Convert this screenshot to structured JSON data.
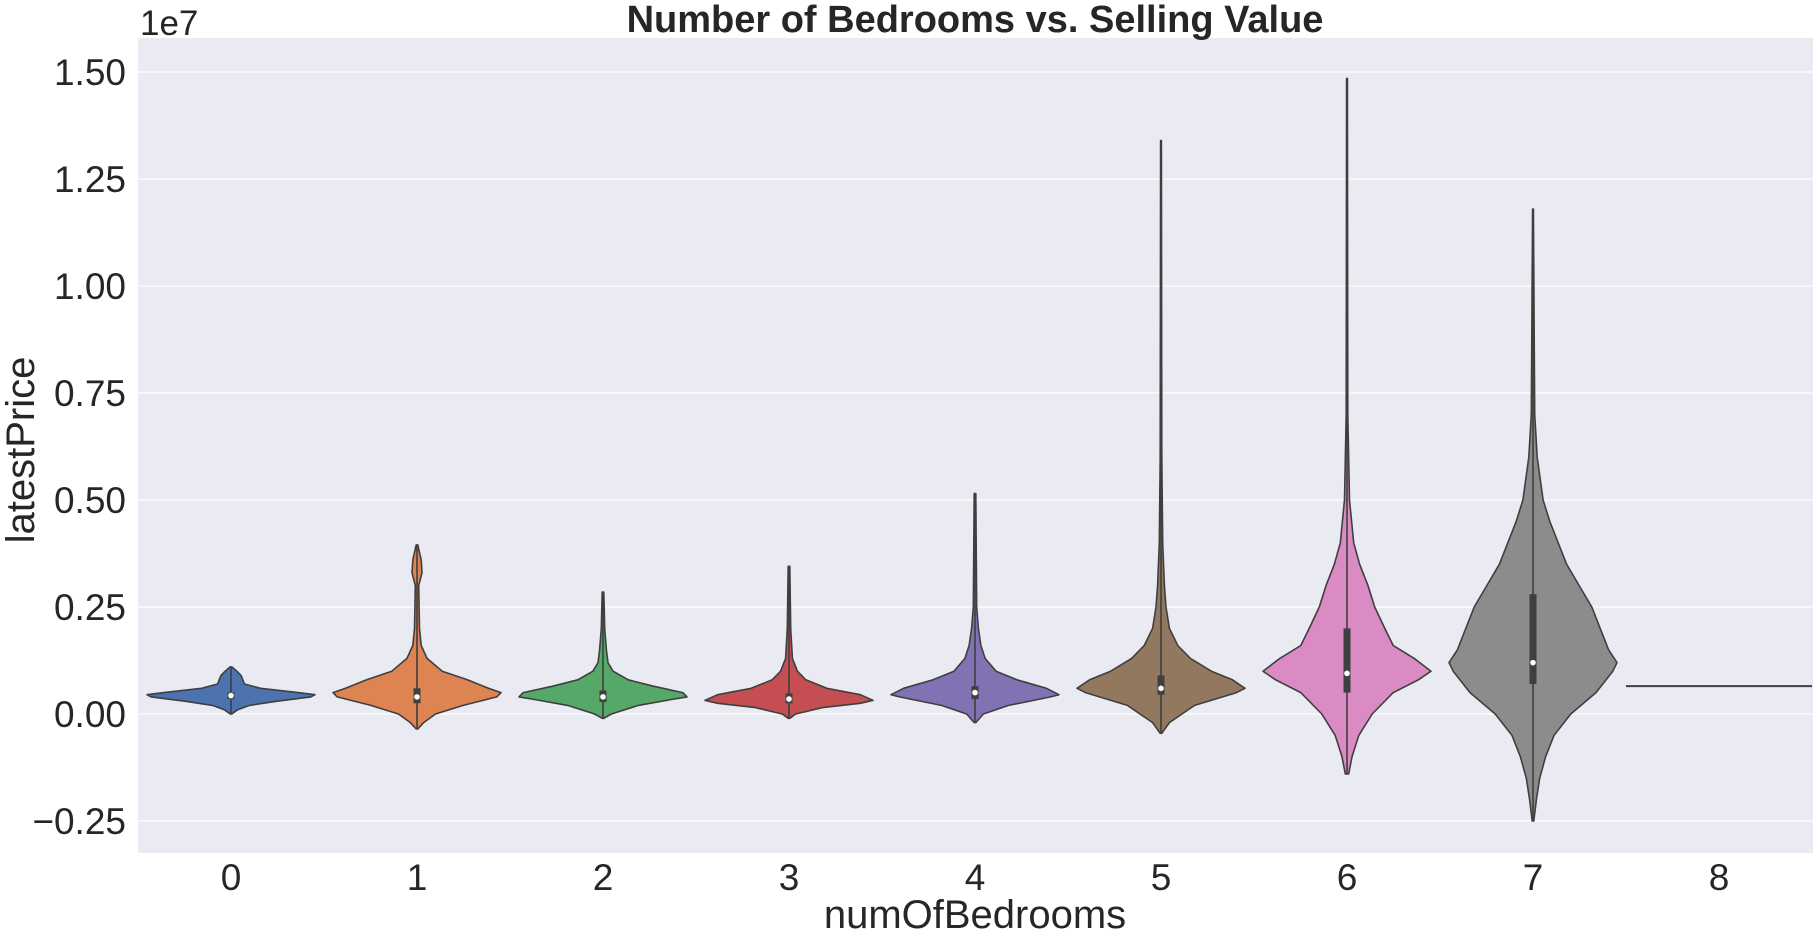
{
  "chart_data": {
    "type": "violin",
    "title": "Number of Bedrooms vs. Selling Value",
    "xlabel": "numOfBedrooms",
    "ylabel": "latestPrice",
    "y_offset_label": "1e7",
    "y_scale_factor": 10000000,
    "ylim": [
      -0.35,
      1.57
    ],
    "y_ticks": [
      -0.25,
      0.0,
      0.25,
      0.5,
      0.75,
      1.0,
      1.25,
      1.5
    ],
    "y_tick_labels": [
      "−0.25",
      "0.00",
      "0.25",
      "0.50",
      "0.75",
      "1.00",
      "1.25",
      "1.50"
    ],
    "categories": [
      "0",
      "1",
      "2",
      "3",
      "4",
      "5",
      "6",
      "7",
      "8"
    ],
    "grid": true,
    "background": "#eaeaf2",
    "colors": [
      "#4c72b0",
      "#dd8452",
      "#55a868",
      "#c44e52",
      "#8172b3",
      "#937860",
      "#da8bc3",
      "#8c8c8c",
      "#ccb974"
    ],
    "violins": [
      {
        "category": "0",
        "min": 0.0,
        "max": 0.11,
        "q1": 0.035,
        "median": 0.043,
        "q3": 0.05,
        "profile": [
          [
            0.0,
            0.01
          ],
          [
            0.01,
            0.08
          ],
          [
            0.02,
            0.22
          ],
          [
            0.03,
            0.55
          ],
          [
            0.04,
            0.95
          ],
          [
            0.045,
            1.0
          ],
          [
            0.05,
            0.8
          ],
          [
            0.06,
            0.35
          ],
          [
            0.07,
            0.16
          ],
          [
            0.08,
            0.14
          ],
          [
            0.09,
            0.12
          ],
          [
            0.1,
            0.07
          ],
          [
            0.11,
            0.01
          ]
        ]
      },
      {
        "category": "1",
        "min": -0.035,
        "max": 0.395,
        "q1": 0.025,
        "median": 0.04,
        "q3": 0.06,
        "profile": [
          [
            -0.035,
            0.01
          ],
          [
            -0.02,
            0.08
          ],
          [
            0.0,
            0.22
          ],
          [
            0.02,
            0.55
          ],
          [
            0.04,
            0.95
          ],
          [
            0.05,
            1.0
          ],
          [
            0.06,
            0.85
          ],
          [
            0.08,
            0.6
          ],
          [
            0.1,
            0.3
          ],
          [
            0.13,
            0.12
          ],
          [
            0.16,
            0.05
          ],
          [
            0.2,
            0.03
          ],
          [
            0.3,
            0.02
          ],
          [
            0.33,
            0.06
          ],
          [
            0.36,
            0.05
          ],
          [
            0.395,
            0.01
          ]
        ]
      },
      {
        "category": "2",
        "min": -0.01,
        "max": 0.285,
        "q1": 0.028,
        "median": 0.04,
        "q3": 0.055,
        "profile": [
          [
            -0.01,
            0.01
          ],
          [
            0.0,
            0.1
          ],
          [
            0.02,
            0.42
          ],
          [
            0.035,
            0.85
          ],
          [
            0.04,
            1.0
          ],
          [
            0.05,
            0.95
          ],
          [
            0.065,
            0.6
          ],
          [
            0.08,
            0.3
          ],
          [
            0.1,
            0.12
          ],
          [
            0.12,
            0.06
          ],
          [
            0.15,
            0.04
          ],
          [
            0.2,
            0.02
          ],
          [
            0.285,
            0.01
          ]
        ]
      },
      {
        "category": "3",
        "min": -0.01,
        "max": 0.345,
        "q1": 0.025,
        "median": 0.035,
        "q3": 0.048,
        "profile": [
          [
            -0.01,
            0.01
          ],
          [
            0.0,
            0.08
          ],
          [
            0.015,
            0.4
          ],
          [
            0.025,
            0.85
          ],
          [
            0.032,
            1.0
          ],
          [
            0.045,
            0.85
          ],
          [
            0.06,
            0.45
          ],
          [
            0.08,
            0.2
          ],
          [
            0.1,
            0.1
          ],
          [
            0.13,
            0.04
          ],
          [
            0.2,
            0.02
          ],
          [
            0.345,
            0.01
          ]
        ]
      },
      {
        "category": "4",
        "min": -0.02,
        "max": 0.515,
        "q1": 0.035,
        "median": 0.05,
        "q3": 0.065,
        "profile": [
          [
            -0.02,
            0.01
          ],
          [
            0.0,
            0.1
          ],
          [
            0.02,
            0.4
          ],
          [
            0.04,
            0.9
          ],
          [
            0.045,
            1.0
          ],
          [
            0.06,
            0.85
          ],
          [
            0.08,
            0.5
          ],
          [
            0.1,
            0.25
          ],
          [
            0.13,
            0.12
          ],
          [
            0.16,
            0.07
          ],
          [
            0.2,
            0.04
          ],
          [
            0.25,
            0.02
          ],
          [
            0.515,
            0.01
          ]
        ]
      },
      {
        "category": "5",
        "min": -0.045,
        "max": 1.34,
        "q1": 0.045,
        "median": 0.06,
        "q3": 0.09,
        "profile": [
          [
            -0.045,
            0.01
          ],
          [
            -0.02,
            0.1
          ],
          [
            0.02,
            0.4
          ],
          [
            0.05,
            0.9
          ],
          [
            0.06,
            1.0
          ],
          [
            0.08,
            0.85
          ],
          [
            0.1,
            0.6
          ],
          [
            0.13,
            0.35
          ],
          [
            0.16,
            0.2
          ],
          [
            0.2,
            0.1
          ],
          [
            0.25,
            0.06
          ],
          [
            0.3,
            0.04
          ],
          [
            0.4,
            0.02
          ],
          [
            0.6,
            0.01
          ],
          [
            1.34,
            0.005
          ]
        ]
      },
      {
        "category": "6",
        "min": -0.14,
        "max": 1.485,
        "q1": 0.05,
        "median": 0.095,
        "q3": 0.2,
        "profile": [
          [
            -0.14,
            0.02
          ],
          [
            -0.1,
            0.06
          ],
          [
            -0.05,
            0.14
          ],
          [
            0.0,
            0.3
          ],
          [
            0.05,
            0.55
          ],
          [
            0.08,
            0.85
          ],
          [
            0.1,
            1.0
          ],
          [
            0.13,
            0.8
          ],
          [
            0.16,
            0.55
          ],
          [
            0.2,
            0.45
          ],
          [
            0.25,
            0.33
          ],
          [
            0.3,
            0.25
          ],
          [
            0.35,
            0.15
          ],
          [
            0.4,
            0.08
          ],
          [
            0.5,
            0.03
          ],
          [
            0.7,
            0.01
          ],
          [
            1.485,
            0.005
          ]
        ]
      },
      {
        "category": "7",
        "min": -0.25,
        "max": 1.18,
        "q1": 0.07,
        "median": 0.12,
        "q3": 0.28,
        "profile": [
          [
            -0.25,
            0.01
          ],
          [
            -0.2,
            0.04
          ],
          [
            -0.15,
            0.08
          ],
          [
            -0.1,
            0.15
          ],
          [
            -0.05,
            0.25
          ],
          [
            0.0,
            0.45
          ],
          [
            0.05,
            0.75
          ],
          [
            0.1,
            0.95
          ],
          [
            0.12,
            1.0
          ],
          [
            0.15,
            0.9
          ],
          [
            0.2,
            0.8
          ],
          [
            0.25,
            0.7
          ],
          [
            0.3,
            0.55
          ],
          [
            0.35,
            0.4
          ],
          [
            0.4,
            0.3
          ],
          [
            0.45,
            0.2
          ],
          [
            0.5,
            0.12
          ],
          [
            0.6,
            0.05
          ],
          [
            0.7,
            0.02
          ],
          [
            1.18,
            0.005
          ]
        ]
      },
      {
        "category": "8",
        "min": 0.065,
        "max": 0.065,
        "median": 0.065,
        "single_value": true
      }
    ]
  }
}
